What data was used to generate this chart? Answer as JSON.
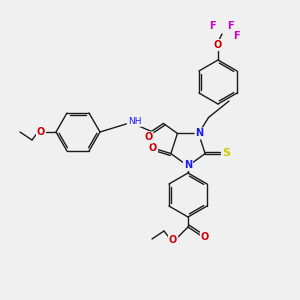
{
  "background_color": "#f0f0f0",
  "figsize": [
    3.0,
    3.0
  ],
  "dpi": 100,
  "atom_colors": {
    "O": "#cc0000",
    "N": "#1a1aff",
    "S": "#cccc00",
    "F": "#cc00cc",
    "C": "#1a1a1a",
    "H": "#666666"
  },
  "bond_color": "#1a1a1a",
  "bond_width": 1.0,
  "font_size": 7.0
}
